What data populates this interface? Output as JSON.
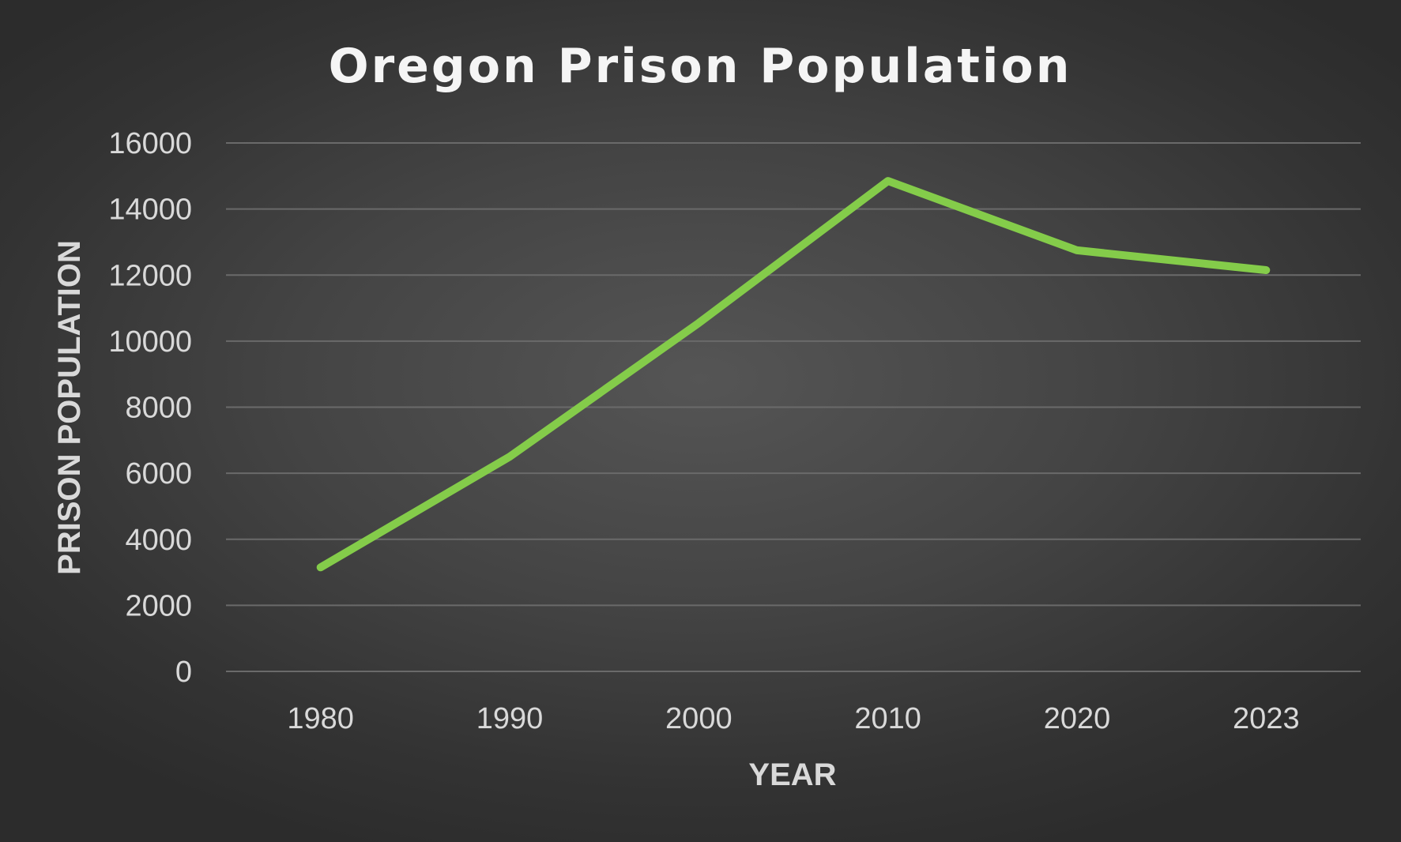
{
  "chart_data": {
    "type": "line",
    "title": "Oregon Prison Population",
    "xlabel": "YEAR",
    "ylabel": "PRISON POPULATION",
    "categories": [
      "1980",
      "1990",
      "2000",
      "2010",
      "2020",
      "2023"
    ],
    "series": [
      {
        "values": [
          3150,
          6500,
          10550,
          14850,
          12750,
          12150
        ]
      }
    ],
    "ylim": [
      0,
      16000
    ],
    "yticks": [
      0,
      2000,
      4000,
      6000,
      8000,
      10000,
      12000,
      14000,
      16000
    ],
    "grid": true,
    "legend": "none"
  },
  "colors": {
    "series_line": "#84cc4a",
    "background_center": "#555555",
    "background_edge": "#2c2c2c"
  }
}
